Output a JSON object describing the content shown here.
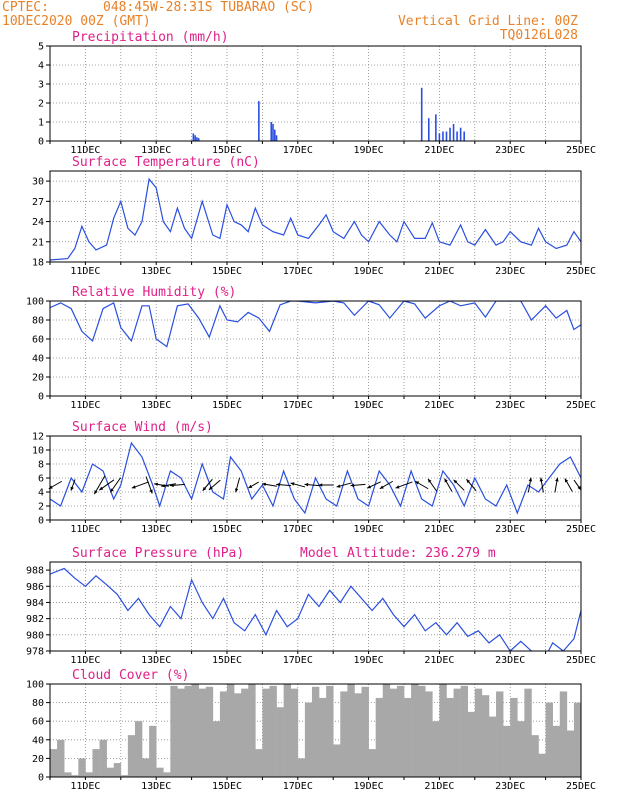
{
  "header": {
    "org": "CPTEC:",
    "location": "048:45W-28:31S  TUBARAO (SC)",
    "run": "10DEC2020 00Z (GMT)",
    "grid_note": "Vertical Grid Line: 00Z",
    "code": "TQ0126L028"
  },
  "x_axis": {
    "start_day": 10,
    "end_day": 25,
    "tick_labels": [
      "11DEC",
      "13DEC",
      "15DEC",
      "17DEC",
      "19DEC",
      "21DEC",
      "23DEC",
      "25DEC"
    ],
    "tick_days": [
      11,
      13,
      15,
      17,
      19,
      21,
      23,
      25
    ]
  },
  "colors": {
    "series": "#2a4fe0",
    "cloud": "#a8a8a8",
    "title": "#e0208a",
    "header": "#e8822a"
  },
  "chart_data": [
    {
      "type": "bar",
      "title": "Precipitation (mm/h)",
      "ylim": [
        0,
        5
      ],
      "yticks": [
        0,
        1,
        2,
        3,
        4,
        5
      ],
      "x": [
        14.05,
        14.1,
        14.15,
        14.2,
        15.9,
        16.25,
        16.3,
        16.35,
        16.4,
        20.5,
        20.7,
        20.9,
        21.0,
        21.1,
        21.2,
        21.3,
        21.4,
        21.5,
        21.6,
        21.7
      ],
      "values": [
        0.4,
        0.3,
        0.2,
        0.15,
        2.1,
        1.0,
        0.9,
        0.6,
        0.3,
        2.8,
        1.2,
        1.4,
        0.4,
        0.5,
        0.5,
        0.7,
        0.9,
        0.5,
        0.7,
        0.5
      ]
    },
    {
      "type": "line",
      "title": "Surface Temperature (nC)",
      "ylim": [
        18,
        31.5
      ],
      "yticks": [
        18,
        21,
        24,
        27,
        30
      ],
      "x": [
        10,
        10.5,
        10.7,
        10.9,
        11.1,
        11.3,
        11.6,
        11.8,
        12.0,
        12.2,
        12.4,
        12.6,
        12.8,
        13.0,
        13.2,
        13.4,
        13.6,
        13.8,
        14.0,
        14.3,
        14.6,
        14.8,
        15.0,
        15.2,
        15.4,
        15.6,
        15.8,
        16.0,
        16.3,
        16.6,
        16.8,
        17.0,
        17.3,
        17.6,
        17.8,
        18.0,
        18.3,
        18.6,
        18.8,
        19.0,
        19.3,
        19.6,
        19.8,
        20.0,
        20.3,
        20.6,
        20.8,
        21.0,
        21.3,
        21.6,
        21.8,
        22.0,
        22.3,
        22.6,
        22.8,
        23.0,
        23.3,
        23.6,
        23.8,
        24.0,
        24.3,
        24.6,
        24.8,
        25.0
      ],
      "values": [
        18.3,
        18.5,
        20.0,
        23.3,
        21.0,
        19.8,
        20.5,
        24.5,
        27.0,
        23.0,
        22.0,
        24.0,
        30.3,
        29.0,
        24.0,
        22.5,
        26.0,
        23.0,
        21.5,
        27.0,
        22.0,
        21.5,
        26.5,
        24.0,
        23.5,
        22.5,
        26.0,
        23.5,
        22.5,
        22.0,
        24.5,
        22.0,
        21.5,
        23.5,
        25.0,
        22.5,
        21.5,
        24.0,
        22.0,
        21.0,
        24.0,
        22.0,
        21.0,
        24.0,
        21.5,
        21.5,
        23.8,
        21.0,
        20.5,
        23.5,
        21.0,
        20.5,
        22.8,
        20.5,
        21.0,
        22.5,
        21.0,
        20.5,
        23.0,
        21.0,
        20.0,
        20.5,
        22.5,
        21.0
      ]
    },
    {
      "type": "line",
      "title": "Relative Humidity (%)",
      "ylim": [
        0,
        100
      ],
      "yticks": [
        0,
        20,
        40,
        60,
        80,
        100
      ],
      "x": [
        10,
        10.3,
        10.6,
        10.9,
        11.2,
        11.5,
        11.8,
        12.0,
        12.3,
        12.6,
        12.8,
        13.0,
        13.3,
        13.6,
        13.9,
        14.2,
        14.5,
        14.8,
        15.0,
        15.3,
        15.6,
        15.9,
        16.2,
        16.5,
        16.8,
        17.0,
        17.5,
        18.0,
        18.3,
        18.6,
        19.0,
        19.3,
        19.6,
        20.0,
        20.3,
        20.6,
        21.0,
        21.3,
        21.6,
        22.0,
        22.3,
        22.6,
        23.0,
        23.3,
        23.6,
        24.0,
        24.3,
        24.6,
        24.8,
        25.0
      ],
      "values": [
        93,
        98,
        92,
        68,
        58,
        92,
        98,
        72,
        58,
        95,
        95,
        60,
        52,
        95,
        97,
        82,
        62,
        95,
        80,
        78,
        88,
        82,
        68,
        96,
        100,
        100,
        98,
        100,
        98,
        85,
        100,
        96,
        82,
        100,
        97,
        82,
        95,
        100,
        95,
        98,
        83,
        100,
        100,
        100,
        80,
        95,
        82,
        90,
        70,
        75
      ]
    },
    {
      "type": "line",
      "title": "Surface Wind (m/s)",
      "ylim": [
        0,
        12
      ],
      "yticks": [
        0,
        2,
        4,
        6,
        8,
        10,
        12
      ],
      "x": [
        10,
        10.3,
        10.6,
        10.9,
        11.2,
        11.5,
        11.8,
        12.0,
        12.3,
        12.6,
        12.9,
        13.1,
        13.4,
        13.7,
        14.0,
        14.3,
        14.6,
        14.9,
        15.1,
        15.4,
        15.7,
        16.0,
        16.3,
        16.6,
        16.9,
        17.2,
        17.5,
        17.8,
        18.1,
        18.4,
        18.7,
        19.0,
        19.3,
        19.6,
        19.9,
        20.2,
        20.5,
        20.8,
        21.1,
        21.4,
        21.7,
        22.0,
        22.3,
        22.6,
        22.9,
        23.2,
        23.5,
        23.8,
        24.1,
        24.4,
        24.7,
        25.0
      ],
      "values": [
        3,
        2,
        6,
        4,
        8,
        7,
        3,
        5,
        11,
        9,
        5,
        2,
        7,
        6,
        3,
        8,
        4,
        3,
        9,
        7,
        3,
        5,
        2,
        7,
        3,
        1,
        6,
        3,
        2,
        7,
        3,
        2,
        7,
        5,
        2,
        7,
        3,
        2,
        7,
        5,
        2,
        6,
        3,
        2,
        5,
        1,
        5,
        4,
        6,
        8,
        9,
        6
      ]
    },
    {
      "type": "line",
      "title": "Surface Pressure (hPa)",
      "ylim": [
        978,
        989
      ],
      "yticks": [
        978,
        980,
        982,
        984,
        986,
        988
      ],
      "x": [
        10,
        10.4,
        10.7,
        11.0,
        11.3,
        11.6,
        11.9,
        12.2,
        12.5,
        12.8,
        13.1,
        13.4,
        13.7,
        14.0,
        14.3,
        14.6,
        14.9,
        15.2,
        15.5,
        15.8,
        16.1,
        16.4,
        16.7,
        17.0,
        17.3,
        17.6,
        17.9,
        18.2,
        18.5,
        18.8,
        19.1,
        19.4,
        19.7,
        20.0,
        20.3,
        20.6,
        20.9,
        21.2,
        21.5,
        21.8,
        22.1,
        22.4,
        22.7,
        23.0,
        23.3,
        23.6,
        23.9,
        24.2,
        24.5,
        24.8,
        25.0
      ],
      "values": [
        987.5,
        988.2,
        987.0,
        986.0,
        987.3,
        986.2,
        985.0,
        983.0,
        984.5,
        982.5,
        981.0,
        983.5,
        982.0,
        986.8,
        984.0,
        982.0,
        984.5,
        981.5,
        980.5,
        982.5,
        980.0,
        983.0,
        981.0,
        982.0,
        985.0,
        983.5,
        985.5,
        984.0,
        986.0,
        984.5,
        983.0,
        984.5,
        982.5,
        981.0,
        982.5,
        980.5,
        981.5,
        980.0,
        981.5,
        979.8,
        980.5,
        979.0,
        980.0,
        978.0,
        979.2,
        978.0,
        976.5,
        979.0,
        978.0,
        979.5,
        983.0
      ]
    },
    {
      "type": "area",
      "title": "Cloud Cover (%)",
      "ylim": [
        0,
        100
      ],
      "yticks": [
        0,
        20,
        40,
        60,
        80,
        100
      ],
      "x": [
        10,
        10.2,
        10.4,
        10.6,
        10.8,
        11.0,
        11.2,
        11.4,
        11.6,
        11.8,
        12.0,
        12.2,
        12.4,
        12.6,
        12.8,
        13.0,
        13.2,
        13.4,
        13.6,
        13.8,
        14.0,
        14.2,
        14.4,
        14.6,
        14.8,
        15.0,
        15.2,
        15.4,
        15.6,
        15.8,
        16.0,
        16.2,
        16.4,
        16.6,
        16.8,
        17.0,
        17.2,
        17.4,
        17.6,
        17.8,
        18.0,
        18.2,
        18.4,
        18.6,
        18.8,
        19.0,
        19.2,
        19.4,
        19.6,
        19.8,
        20.0,
        20.2,
        20.4,
        20.6,
        20.8,
        21.0,
        21.2,
        21.4,
        21.6,
        21.8,
        22.0,
        22.2,
        22.4,
        22.6,
        22.8,
        23.0,
        23.2,
        23.4,
        23.6,
        23.8,
        24.0,
        24.2,
        24.4,
        24.6,
        24.8,
        25.0
      ],
      "values": [
        30,
        40,
        5,
        2,
        20,
        5,
        30,
        40,
        10,
        15,
        2,
        45,
        60,
        20,
        55,
        10,
        5,
        98,
        95,
        98,
        100,
        95,
        97,
        60,
        92,
        100,
        90,
        95,
        100,
        30,
        95,
        98,
        75,
        100,
        95,
        20,
        80,
        97,
        85,
        98,
        35,
        92,
        100,
        90,
        97,
        30,
        85,
        100,
        95,
        98,
        85,
        100,
        98,
        92,
        60,
        100,
        85,
        95,
        98,
        70,
        95,
        88,
        65,
        92,
        55,
        85,
        60,
        95,
        45,
        25,
        80,
        55,
        92,
        50,
        80,
        60
      ]
    }
  ],
  "wind_arrows": {
    "note": "direction in degrees (0=N, 90=E) the arrow points to, magnitude in m/s",
    "x": [
      10.15,
      10.65,
      11.4,
      11.6,
      11.85,
      12.55,
      12.8,
      13.15,
      13.35,
      13.6,
      14.45,
      14.65,
      15.3,
      15.75,
      16.2,
      16.6,
      17.0,
      17.4,
      17.8,
      18.3,
      18.7,
      19.15,
      19.5,
      20.0,
      20.5,
      20.8,
      21.25,
      21.55,
      21.9,
      23.55,
      23.9,
      24.3,
      24.65,
      24.9
    ],
    "dir": [
      240,
      200,
      210,
      235,
      215,
      250,
      160,
      280,
      260,
      265,
      220,
      230,
      195,
      240,
      280,
      275,
      285,
      275,
      270,
      255,
      265,
      245,
      240,
      250,
      300,
      325,
      330,
      315,
      320,
      10,
      350,
      10,
      330,
      145
    ],
    "speed": [
      3,
      2,
      5,
      4,
      4,
      4,
      4,
      3,
      3,
      3,
      3,
      3,
      3,
      2,
      3,
      3,
      3,
      3,
      3,
      3,
      3,
      3,
      3,
      4,
      3,
      3,
      3,
      3,
      3,
      3,
      3,
      3,
      3,
      2
    ]
  },
  "annotations": {
    "model_altitude": "Model Altitude: 236.279 m"
  }
}
